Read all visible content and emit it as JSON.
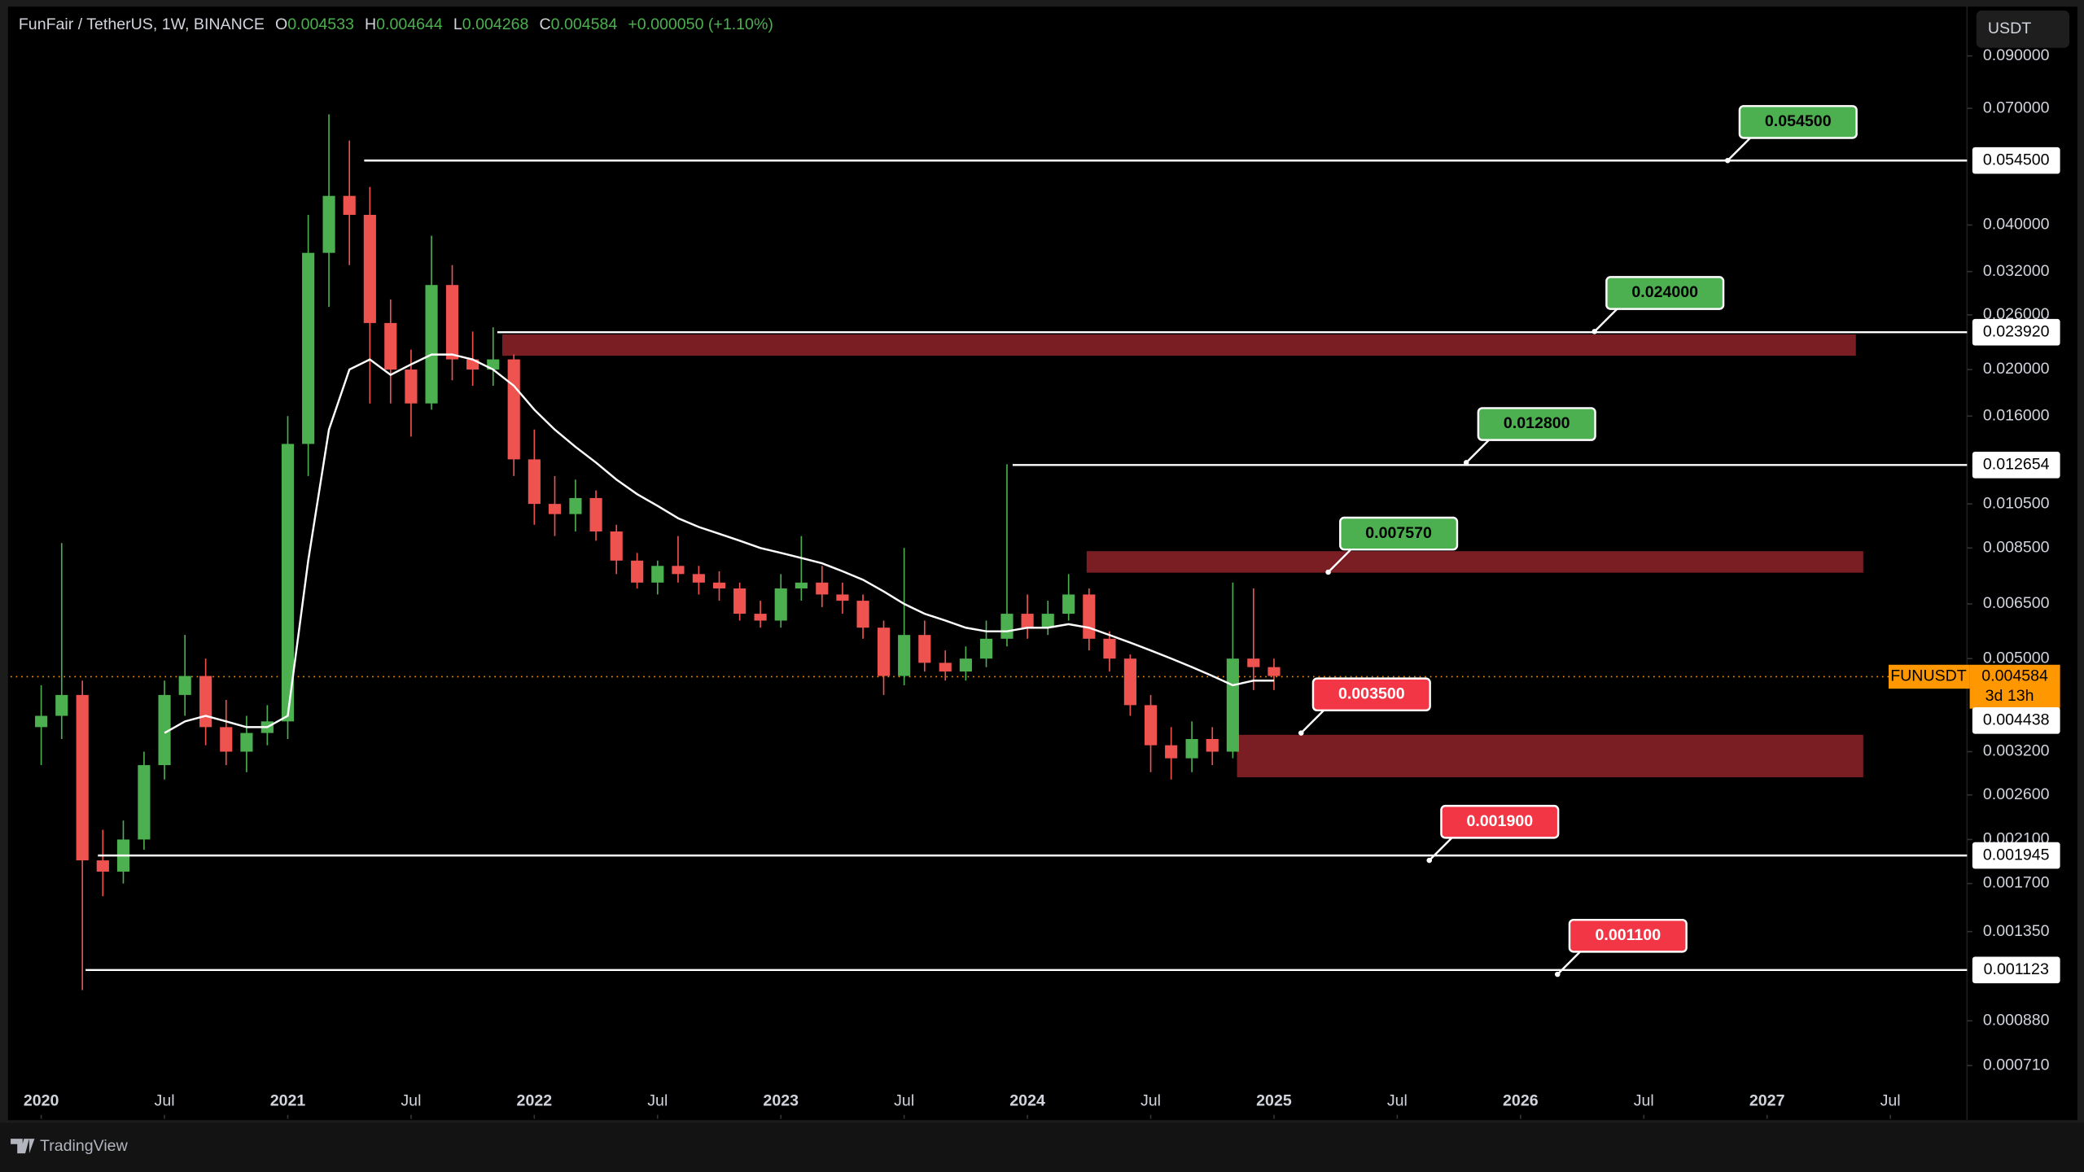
{
  "header": {
    "title": "FunFair / TetherUS, 1W, BINANCE",
    "o": "O",
    "open": 0.004533,
    "h": "H",
    "high": 0.004644,
    "l": "L",
    "low": 0.004268,
    "c": "C",
    "close": 0.004584,
    "change": "+0.000050 (+1.10%)"
  },
  "toolbar": {
    "currency": "USDT"
  },
  "footer": {
    "brand": "TradingView"
  },
  "chart_data": {
    "type": "candlestick",
    "x": [
      2020,
      2020.083,
      2020.167,
      2020.25,
      2020.333,
      2020.417,
      2020.5,
      2020.583,
      2020.667,
      2020.75,
      2020.833,
      2020.917,
      2021,
      2021.083,
      2021.167,
      2021.25,
      2021.333,
      2021.417,
      2021.5,
      2021.583,
      2021.667,
      2021.75,
      2021.833,
      2021.917,
      2022,
      2022.083,
      2022.167,
      2022.25,
      2022.333,
      2022.417,
      2022.5,
      2022.583,
      2022.667,
      2022.75,
      2022.833,
      2022.917,
      2023,
      2023.083,
      2023.167,
      2023.25,
      2023.333,
      2023.417,
      2023.5,
      2023.583,
      2023.667,
      2023.75,
      2023.833,
      2023.917,
      2024,
      2024.083,
      2024.167,
      2024.25,
      2024.333,
      2024.417,
      2024.5,
      2024.583,
      2024.667,
      2024.75,
      2024.833,
      2024.917,
      2025
    ],
    "open": [
      0.0036,
      0.0038,
      0.0042,
      0.0019,
      0.0018,
      0.0021,
      0.003,
      0.0042,
      0.0046,
      0.0036,
      0.0032,
      0.0035,
      0.0037,
      0.014,
      0.035,
      0.046,
      0.042,
      0.025,
      0.02,
      0.017,
      0.03,
      0.021,
      0.02,
      0.021,
      0.013,
      0.0105,
      0.01,
      0.0108,
      0.0092,
      0.008,
      0.0072,
      0.0078,
      0.0075,
      0.0072,
      0.007,
      0.0062,
      0.006,
      0.007,
      0.0072,
      0.0068,
      0.0066,
      0.0058,
      0.0046,
      0.0056,
      0.0049,
      0.0047,
      0.005,
      0.0055,
      0.0062,
      0.0058,
      0.0062,
      0.0068,
      0.0055,
      0.005,
      0.004,
      0.0033,
      0.0031,
      0.0034,
      0.0032,
      0.005,
      0.0048
    ],
    "high": [
      0.0044,
      0.0087,
      0.0045,
      0.0022,
      0.0023,
      0.0032,
      0.0045,
      0.0056,
      0.005,
      0.0041,
      0.0038,
      0.004,
      0.016,
      0.042,
      0.068,
      0.06,
      0.048,
      0.028,
      0.022,
      0.038,
      0.033,
      0.024,
      0.0245,
      0.0215,
      0.015,
      0.012,
      0.0118,
      0.0112,
      0.0095,
      0.0083,
      0.008,
      0.009,
      0.0078,
      0.0076,
      0.0072,
      0.0066,
      0.0075,
      0.009,
      0.0078,
      0.0072,
      0.0068,
      0.006,
      0.0085,
      0.006,
      0.0052,
      0.0053,
      0.006,
      0.0127,
      0.0068,
      0.0066,
      0.0075,
      0.007,
      0.0057,
      0.0051,
      0.0042,
      0.0036,
      0.0037,
      0.0036,
      0.0072,
      0.007,
      0.005
    ],
    "low": [
      0.003,
      0.0034,
      0.00102,
      0.0016,
      0.0017,
      0.002,
      0.0028,
      0.0038,
      0.0033,
      0.003,
      0.0029,
      0.0033,
      0.0034,
      0.012,
      0.027,
      0.033,
      0.017,
      0.017,
      0.0145,
      0.0165,
      0.019,
      0.0185,
      0.0185,
      0.012,
      0.0095,
      0.009,
      0.0092,
      0.0088,
      0.0075,
      0.007,
      0.0068,
      0.0072,
      0.0068,
      0.0066,
      0.006,
      0.0058,
      0.0058,
      0.0066,
      0.0064,
      0.0062,
      0.0055,
      0.0042,
      0.0044,
      0.0047,
      0.0045,
      0.0045,
      0.0048,
      0.0053,
      0.0055,
      0.0056,
      0.006,
      0.0052,
      0.0047,
      0.0038,
      0.0029,
      0.0028,
      0.0029,
      0.003,
      0.0031,
      0.0043,
      0.0043
    ],
    "close": [
      0.0038,
      0.0042,
      0.0019,
      0.0018,
      0.0021,
      0.003,
      0.0042,
      0.0046,
      0.0036,
      0.0032,
      0.0035,
      0.0037,
      0.014,
      0.035,
      0.046,
      0.042,
      0.025,
      0.02,
      0.017,
      0.03,
      0.021,
      0.02,
      0.021,
      0.013,
      0.0105,
      0.01,
      0.0108,
      0.0092,
      0.008,
      0.0072,
      0.0078,
      0.0075,
      0.0072,
      0.007,
      0.0062,
      0.006,
      0.007,
      0.0072,
      0.0068,
      0.0066,
      0.0058,
      0.0046,
      0.0056,
      0.0049,
      0.0047,
      0.005,
      0.0055,
      0.0062,
      0.0058,
      0.0062,
      0.0068,
      0.0055,
      0.005,
      0.004,
      0.0033,
      0.0031,
      0.0034,
      0.0032,
      0.005,
      0.0048,
      0.0046
    ],
    "up_color": "#4caf50",
    "down_color": "#ef5350",
    "ma": {
      "color": "#ffffff",
      "values": [
        null,
        null,
        null,
        null,
        null,
        null,
        0.0035,
        0.0037,
        0.0038,
        0.0037,
        0.0036,
        0.0036,
        0.0038,
        0.008,
        0.015,
        0.02,
        0.021,
        0.0195,
        0.0205,
        0.0215,
        0.0215,
        0.021,
        0.02,
        0.0185,
        0.0165,
        0.015,
        0.0138,
        0.0128,
        0.0118,
        0.011,
        0.0104,
        0.0098,
        0.0094,
        0.0091,
        0.0088,
        0.0085,
        0.0083,
        0.0081,
        0.0079,
        0.0076,
        0.0073,
        0.0069,
        0.0065,
        0.0062,
        0.006,
        0.0058,
        0.0057,
        0.0057,
        0.0058,
        0.0058,
        0.0059,
        0.0058,
        0.0056,
        0.0054,
        0.0052,
        0.005,
        0.0048,
        0.0046,
        0.0044,
        0.0045,
        0.0045
      ]
    },
    "xlim": [
      2019.876,
      2027.811
    ],
    "xticks": [
      2020,
      {
        "value": 2020.5,
        "label": "Jul"
      },
      2021,
      {
        "value": 2021.5,
        "label": "Jul"
      },
      2022,
      {
        "value": 2022.5,
        "label": "Jul"
      },
      2023,
      {
        "value": 2023.5,
        "label": "Jul"
      },
      2024,
      {
        "value": 2024.5,
        "label": "Jul"
      },
      2025,
      {
        "value": 2025.5,
        "label": "Jul"
      },
      2026,
      {
        "value": 2026.5,
        "label": "Jul"
      },
      2027,
      {
        "value": 2027.5,
        "label": "Jul"
      }
    ],
    "ylim": [
      0.00055,
      0.114
    ],
    "log_scale": true,
    "grid": false,
    "yticks": [
      {
        "value": 0.09,
        "label": "0.090000"
      },
      {
        "value": 0.07,
        "label": "0.070000"
      },
      {
        "value": 0.04,
        "label": "0.040000"
      },
      {
        "value": 0.032,
        "label": "0.032000"
      },
      {
        "value": 0.026,
        "label": "0.026000"
      },
      {
        "value": 0.02,
        "label": "0.020000"
      },
      {
        "value": 0.016,
        "label": "0.016000"
      },
      {
        "value": 0.0105,
        "label": "0.010500"
      },
      {
        "value": 0.0085,
        "label": "0.008500"
      },
      {
        "value": 0.0065,
        "label": "0.006500"
      },
      {
        "value": 0.005,
        "label": "0.005000"
      },
      {
        "value": 0.0032,
        "label": "0.003200"
      },
      {
        "value": 0.0026,
        "label": "0.002600"
      },
      {
        "value": 0.0021,
        "label": "0.002100"
      },
      {
        "value": 0.0017,
        "label": "0.001700"
      },
      {
        "value": 0.00135,
        "label": "0.001350"
      },
      {
        "value": 0.00088,
        "label": "0.000880"
      },
      {
        "value": 0.00071,
        "label": "0.000710"
      }
    ],
    "levels": [
      {
        "value": 0.0545,
        "label": "0.054500",
        "start": 2021.31
      },
      {
        "value": 0.02392,
        "label": "0.023920",
        "start": 2021.85
      },
      {
        "value": 0.012654,
        "start": 2023.94
      },
      {
        "value": 0.001945,
        "start": 2020.23
      },
      {
        "value": 0.001123,
        "start": 2020.18
      }
    ],
    "level_color": "#ffffff",
    "zones": [
      {
        "low": 0.02137,
        "high": 0.02366,
        "start": 2021.87,
        "end": 2027.36
      },
      {
        "low": 0.00755,
        "high": 0.00837,
        "start": 2024.24,
        "end": 2027.39
      },
      {
        "low": 0.00283,
        "high": 0.00347,
        "start": 2024.85,
        "end": 2027.39
      }
    ],
    "zone_color": "#7a1e24",
    "callouts": [
      {
        "x": 2026.84,
        "value": 0.0545,
        "label": "0.054500",
        "color": "#4caf50"
      },
      {
        "x": 2026.3,
        "value": 0.024,
        "label": "0.024000",
        "color": "#4caf50"
      },
      {
        "x": 2025.78,
        "value": 0.0128,
        "label": "0.012800",
        "color": "#4caf50"
      },
      {
        "x": 2025.22,
        "value": 0.00757,
        "label": "0.007570",
        "color": "#4caf50"
      },
      {
        "x": 2025.11,
        "value": 0.0035,
        "label": "0.003500",
        "color": "#f23645"
      },
      {
        "x": 2025.63,
        "value": 0.0019,
        "label": "0.001900",
        "color": "#f23645"
      },
      {
        "x": 2026.15,
        "value": 0.0011,
        "label": "0.001100",
        "color": "#f23645"
      }
    ],
    "last_price": {
      "symbol": "FUNUSDT",
      "value": 0.004584,
      "countdown": "3d 13h",
      "color": "#ff9800"
    },
    "ma_last": {
      "value": 0.004438
    }
  }
}
